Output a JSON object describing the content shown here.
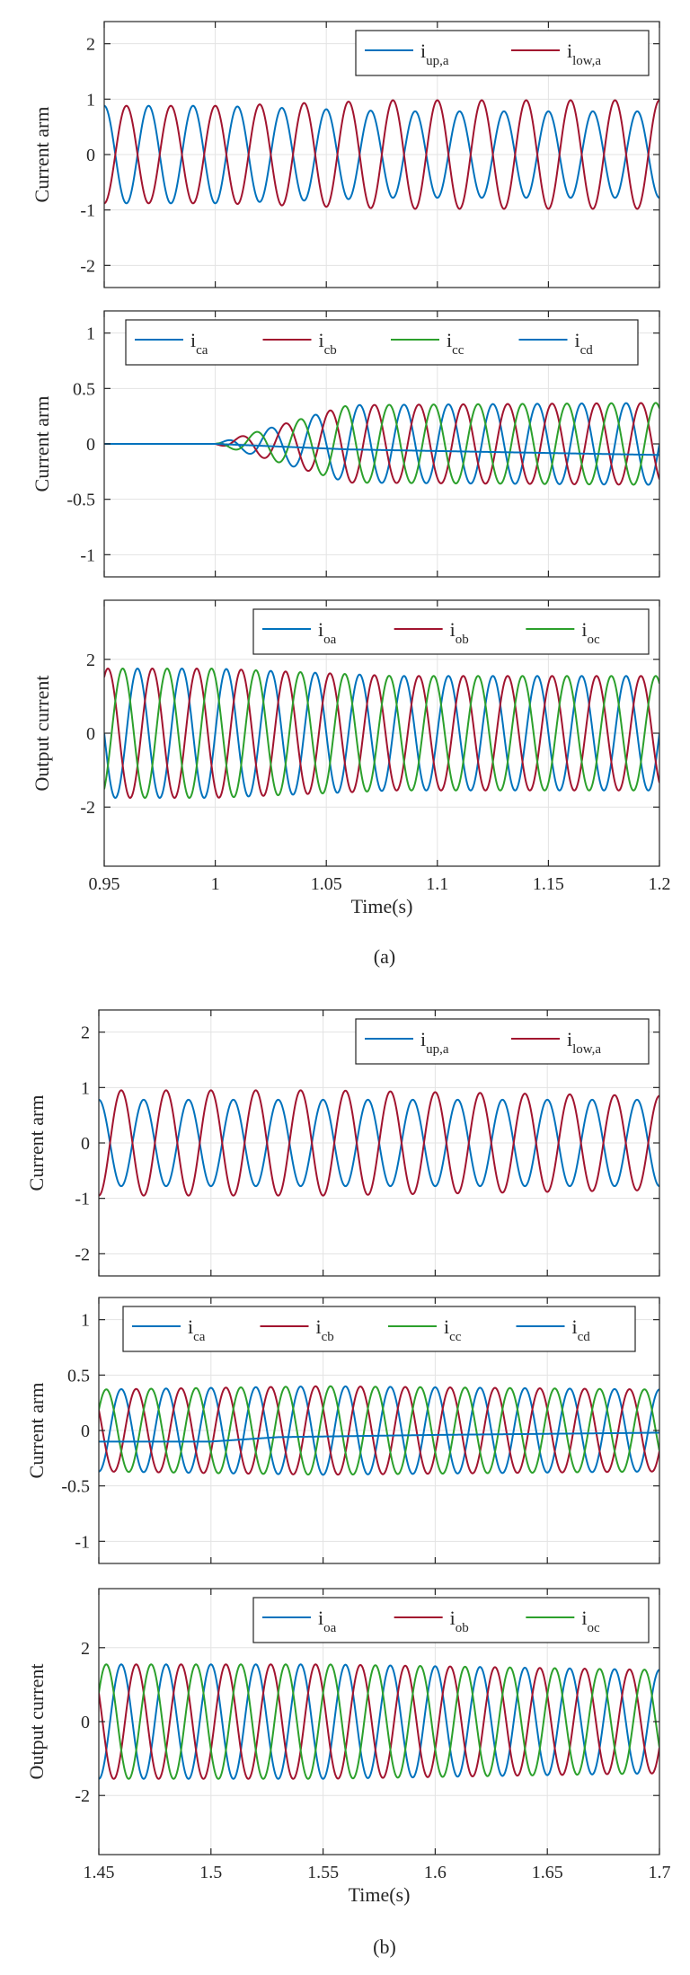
{
  "colors": {
    "blue": "#0072BD",
    "red": "#A2142F",
    "green": "#2CA02C",
    "axis": "#262626",
    "grid": "#e3e3e3"
  },
  "captions": {
    "a": "(a)",
    "b": "(b)"
  },
  "chart_data": [
    {
      "id": "a1",
      "group": "a",
      "type": "line",
      "ylabel": "Current arm",
      "xlabel": "",
      "xlim": [
        0.95,
        1.2
      ],
      "ylim": [
        -2.4,
        2.4
      ],
      "yticks": [
        -2,
        -1,
        0,
        1,
        2
      ],
      "ytick_labels": [
        "-2",
        "-1",
        "0",
        "1",
        "2"
      ],
      "xticks": [
        0.95,
        1,
        1.05,
        1.1,
        1.15,
        1.2
      ],
      "xtick_labels": [],
      "legend": {
        "position": "top-right",
        "entries": [
          {
            "base": "i",
            "sub": "up,a",
            "color": "blue"
          },
          {
            "base": "i",
            "sub": "low,a",
            "color": "red"
          }
        ]
      },
      "series": [
        {
          "name": "i_up,a",
          "color": "blue",
          "kind": "sine",
          "freq": 50,
          "phase_deg": 270,
          "amp_points": [
            [
              0.95,
              0.88
            ],
            [
              1.0,
              0.88
            ],
            [
              1.08,
              0.78
            ],
            [
              1.2,
              0.78
            ]
          ],
          "offset_points": [
            [
              0.95,
              0
            ],
            [
              1.2,
              0
            ]
          ]
        },
        {
          "name": "i_low,a",
          "color": "red",
          "kind": "sine",
          "freq": 50,
          "phase_deg": 90,
          "amp_points": [
            [
              0.95,
              0.88
            ],
            [
              1.0,
              0.88
            ],
            [
              1.08,
              0.98
            ],
            [
              1.2,
              0.98
            ]
          ],
          "offset_points": [
            [
              0.95,
              0
            ],
            [
              1.2,
              0
            ]
          ]
        }
      ]
    },
    {
      "id": "a2",
      "group": "a",
      "type": "line",
      "ylabel": "Current arm",
      "xlabel": "",
      "xlim": [
        0.95,
        1.2
      ],
      "ylim": [
        -1.2,
        1.2
      ],
      "yticks": [
        -1,
        -0.5,
        0,
        0.5,
        1
      ],
      "ytick_labels": [
        "-1",
        "-0.5",
        "0",
        "0.5",
        "1"
      ],
      "xticks": [
        0.95,
        1,
        1.05,
        1.1,
        1.15,
        1.2
      ],
      "xtick_labels": [],
      "legend": {
        "position": "top",
        "entries": [
          {
            "base": "i",
            "sub": "ca",
            "color": "blue"
          },
          {
            "base": "i",
            "sub": "cb",
            "color": "red"
          },
          {
            "base": "i",
            "sub": "cc",
            "color": "green"
          },
          {
            "base": "i",
            "sub": "cd",
            "color": "blue"
          }
        ]
      },
      "series": [
        {
          "name": "i_ca",
          "color": "blue",
          "kind": "sine",
          "freq": 50,
          "phase_deg": 0,
          "start": 1.0,
          "amp_points": [
            [
              1.0,
              0
            ],
            [
              1.06,
              0.35
            ],
            [
              1.2,
              0.37
            ]
          ],
          "offset_points": [
            [
              0.95,
              0
            ],
            [
              1.2,
              0
            ]
          ]
        },
        {
          "name": "i_cb",
          "color": "red",
          "kind": "sine",
          "freq": 50,
          "phase_deg": 240,
          "start": 1.0,
          "amp_points": [
            [
              1.0,
              0
            ],
            [
              1.06,
              0.35
            ],
            [
              1.2,
              0.37
            ]
          ],
          "offset_points": [
            [
              0.95,
              0
            ],
            [
              1.2,
              0
            ]
          ]
        },
        {
          "name": "i_cc",
          "color": "green",
          "kind": "sine",
          "freq": 50,
          "phase_deg": 120,
          "start": 1.0,
          "amp_points": [
            [
              1.0,
              0
            ],
            [
              1.06,
              0.35
            ],
            [
              1.2,
              0.37
            ]
          ],
          "offset_points": [
            [
              0.95,
              0
            ],
            [
              1.2,
              0
            ]
          ]
        },
        {
          "name": "i_cd",
          "color": "blue",
          "kind": "sine",
          "freq": 50,
          "phase_deg": 0,
          "amp_points": [
            [
              0.95,
              0
            ],
            [
              1.2,
              0
            ]
          ],
          "offset_points": [
            [
              0.95,
              0
            ],
            [
              1.0,
              0
            ],
            [
              1.06,
              -0.05
            ],
            [
              1.2,
              -0.1
            ]
          ]
        }
      ]
    },
    {
      "id": "a3",
      "group": "a",
      "type": "line",
      "ylabel": "Output current",
      "xlabel": "Time(s)",
      "xlim": [
        0.95,
        1.2
      ],
      "ylim": [
        -3.6,
        3.6
      ],
      "yticks": [
        -2,
        0,
        2
      ],
      "ytick_labels": [
        "-2",
        "0",
        "2"
      ],
      "xticks": [
        0.95,
        1,
        1.05,
        1.1,
        1.15,
        1.2
      ],
      "xtick_labels": [
        "0.95",
        "1",
        "1.05",
        "1.1",
        "1.15",
        "1.2"
      ],
      "legend": {
        "position": "top-right",
        "entries": [
          {
            "base": "i",
            "sub": "oa",
            "color": "blue"
          },
          {
            "base": "i",
            "sub": "ob",
            "color": "red"
          },
          {
            "base": "i",
            "sub": "oc",
            "color": "green"
          }
        ]
      },
      "series": [
        {
          "name": "i_oa",
          "color": "blue",
          "kind": "sine",
          "freq": 50,
          "phase_deg": 0,
          "amp_points": [
            [
              0.95,
              1.75
            ],
            [
              1.0,
              1.75
            ],
            [
              1.08,
              1.55
            ],
            [
              1.2,
              1.55
            ]
          ],
          "offset_points": [
            [
              0.95,
              0
            ],
            [
              1.2,
              0
            ]
          ]
        },
        {
          "name": "i_ob",
          "color": "red",
          "kind": "sine",
          "freq": 50,
          "phase_deg": 240,
          "amp_points": [
            [
              0.95,
              1.75
            ],
            [
              1.0,
              1.75
            ],
            [
              1.08,
              1.55
            ],
            [
              1.2,
              1.55
            ]
          ],
          "offset_points": [
            [
              0.95,
              0
            ],
            [
              1.2,
              0
            ]
          ]
        },
        {
          "name": "i_oc",
          "color": "green",
          "kind": "sine",
          "freq": 50,
          "phase_deg": 120,
          "amp_points": [
            [
              0.95,
              1.75
            ],
            [
              1.0,
              1.75
            ],
            [
              1.08,
              1.55
            ],
            [
              1.2,
              1.55
            ]
          ],
          "offset_points": [
            [
              0.95,
              0
            ],
            [
              1.2,
              0
            ]
          ]
        }
      ]
    },
    {
      "id": "b1",
      "group": "b",
      "type": "line",
      "ylabel": "Current arm",
      "xlabel": "",
      "xlim": [
        1.45,
        1.7
      ],
      "ylim": [
        -2.4,
        2.4
      ],
      "yticks": [
        -2,
        -1,
        0,
        1,
        2
      ],
      "ytick_labels": [
        "-2",
        "-1",
        "0",
        "1",
        "2"
      ],
      "xticks": [
        1.45,
        1.5,
        1.55,
        1.6,
        1.65,
        1.7
      ],
      "xtick_labels": [],
      "legend": {
        "position": "top-right",
        "entries": [
          {
            "base": "i",
            "sub": "up,a",
            "color": "blue"
          },
          {
            "base": "i",
            "sub": "low,a",
            "color": "red"
          }
        ]
      },
      "series": [
        {
          "name": "i_up,a",
          "color": "blue",
          "kind": "sine",
          "freq": 50,
          "phase_deg": 270,
          "amp_points": [
            [
              1.45,
              0.78
            ],
            [
              1.7,
              0.78
            ]
          ],
          "offset_points": [
            [
              1.45,
              0
            ],
            [
              1.7,
              0
            ]
          ]
        },
        {
          "name": "i_low,a",
          "color": "red",
          "kind": "sine",
          "freq": 50,
          "phase_deg": 90,
          "amp_points": [
            [
              1.45,
              0.95
            ],
            [
              1.55,
              0.95
            ],
            [
              1.7,
              0.85
            ]
          ],
          "offset_points": [
            [
              1.45,
              0
            ],
            [
              1.7,
              0
            ]
          ]
        }
      ]
    },
    {
      "id": "b2",
      "group": "b",
      "type": "line",
      "ylabel": "Current arm",
      "xlabel": "",
      "xlim": [
        1.45,
        1.7
      ],
      "ylim": [
        -1.2,
        1.2
      ],
      "yticks": [
        -1,
        -0.5,
        0,
        0.5,
        1
      ],
      "ytick_labels": [
        "-1",
        "-0.5",
        "0",
        "0.5",
        "1"
      ],
      "xticks": [
        1.45,
        1.5,
        1.55,
        1.6,
        1.65,
        1.7
      ],
      "xtick_labels": [],
      "legend": {
        "position": "top",
        "entries": [
          {
            "base": "i",
            "sub": "ca",
            "color": "blue"
          },
          {
            "base": "i",
            "sub": "cb",
            "color": "red"
          },
          {
            "base": "i",
            "sub": "cc",
            "color": "green"
          },
          {
            "base": "i",
            "sub": "cd",
            "color": "blue"
          }
        ]
      },
      "series": [
        {
          "name": "i_ca",
          "color": "blue",
          "kind": "sine",
          "freq": 50,
          "phase_deg": 90,
          "amp_points": [
            [
              1.45,
              0.37
            ],
            [
              1.55,
              0.4
            ],
            [
              1.7,
              0.37
            ]
          ],
          "offset_points": [
            [
              1.45,
              0
            ],
            [
              1.7,
              0
            ]
          ]
        },
        {
          "name": "i_cb",
          "color": "red",
          "kind": "sine",
          "freq": 50,
          "phase_deg": 330,
          "amp_points": [
            [
              1.45,
              0.37
            ],
            [
              1.55,
              0.4
            ],
            [
              1.7,
              0.37
            ]
          ],
          "offset_points": [
            [
              1.45,
              0
            ],
            [
              1.7,
              0
            ]
          ]
        },
        {
          "name": "i_cc",
          "color": "green",
          "kind": "sine",
          "freq": 50,
          "phase_deg": 210,
          "amp_points": [
            [
              1.45,
              0.37
            ],
            [
              1.55,
              0.4
            ],
            [
              1.7,
              0.37
            ]
          ],
          "offset_points": [
            [
              1.45,
              0
            ],
            [
              1.7,
              0
            ]
          ]
        },
        {
          "name": "i_cd",
          "color": "blue",
          "kind": "sine",
          "freq": 50,
          "phase_deg": 0,
          "amp_points": [
            [
              1.45,
              0
            ],
            [
              1.7,
              0
            ]
          ],
          "offset_points": [
            [
              1.45,
              -0.1
            ],
            [
              1.5,
              -0.1
            ],
            [
              1.53,
              -0.06
            ],
            [
              1.6,
              -0.04
            ],
            [
              1.7,
              -0.02
            ]
          ]
        }
      ]
    },
    {
      "id": "b3",
      "group": "b",
      "type": "line",
      "ylabel": "Output current",
      "xlabel": "Time(s)",
      "xlim": [
        1.45,
        1.7
      ],
      "ylim": [
        -3.6,
        3.6
      ],
      "yticks": [
        -2,
        0,
        2
      ],
      "ytick_labels": [
        "-2",
        "0",
        "2"
      ],
      "xticks": [
        1.45,
        1.5,
        1.55,
        1.6,
        1.65,
        1.7
      ],
      "xtick_labels": [
        "1.45",
        "1.5",
        "1.55",
        "1.6",
        "1.65",
        "1.7"
      ],
      "legend": {
        "position": "top-right",
        "entries": [
          {
            "base": "i",
            "sub": "oa",
            "color": "blue"
          },
          {
            "base": "i",
            "sub": "ob",
            "color": "red"
          },
          {
            "base": "i",
            "sub": "oc",
            "color": "green"
          }
        ]
      },
      "series": [
        {
          "name": "i_oa",
          "color": "blue",
          "kind": "sine",
          "freq": 50,
          "phase_deg": 90,
          "amp_points": [
            [
              1.45,
              1.55
            ],
            [
              1.55,
              1.55
            ],
            [
              1.7,
              1.4
            ]
          ],
          "offset_points": [
            [
              1.45,
              0
            ],
            [
              1.7,
              0
            ]
          ]
        },
        {
          "name": "i_ob",
          "color": "red",
          "kind": "sine",
          "freq": 50,
          "phase_deg": 330,
          "amp_points": [
            [
              1.45,
              1.55
            ],
            [
              1.55,
              1.55
            ],
            [
              1.7,
              1.4
            ]
          ],
          "offset_points": [
            [
              1.45,
              0
            ],
            [
              1.7,
              0
            ]
          ]
        },
        {
          "name": "i_oc",
          "color": "green",
          "kind": "sine",
          "freq": 50,
          "phase_deg": 210,
          "amp_points": [
            [
              1.45,
              1.55
            ],
            [
              1.55,
              1.55
            ],
            [
              1.7,
              1.4
            ]
          ],
          "offset_points": [
            [
              1.45,
              0
            ],
            [
              1.7,
              0
            ]
          ]
        }
      ]
    }
  ]
}
